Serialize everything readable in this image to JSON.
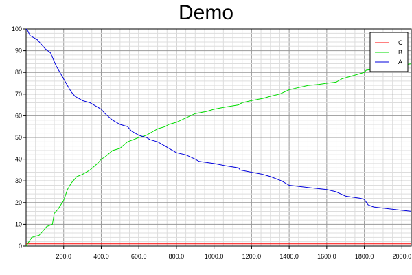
{
  "chart_data": {
    "type": "line",
    "title": "Demo",
    "xlabel": "",
    "ylabel": "",
    "xlim": [
      0,
      2050
    ],
    "ylim": [
      0,
      100
    ],
    "x_ticks": [
      200,
      400,
      600,
      800,
      1000,
      1200,
      1400,
      1600,
      1800,
      2000
    ],
    "x_tick_labels": [
      "200.0",
      "400.0",
      "600.0",
      "800.0",
      "1000.0",
      "1200.0",
      "1400.0",
      "1600.0",
      "1800.0",
      "2000.0"
    ],
    "y_ticks": [
      0,
      10,
      20,
      30,
      40,
      50,
      60,
      70,
      80,
      90,
      100
    ],
    "y_tick_labels": [
      "0",
      "10",
      "20",
      "30",
      "40",
      "50",
      "60",
      "70",
      "80",
      "90",
      "100"
    ],
    "grid": true,
    "legend_position": "top-right",
    "series": [
      {
        "name": "C",
        "color": "#ff0000",
        "x": [
          0,
          2050
        ],
        "y": [
          1,
          1
        ]
      },
      {
        "name": "B",
        "color": "#00dd00",
        "x": [
          0,
          15,
          30,
          70,
          90,
          110,
          140,
          150,
          170,
          200,
          220,
          240,
          270,
          300,
          340,
          380,
          400,
          420,
          460,
          500,
          540,
          570,
          600,
          640,
          680,
          700,
          740,
          760,
          800,
          850,
          900,
          960,
          1000,
          1060,
          1130,
          1150,
          1200,
          1260,
          1300,
          1350,
          1400,
          1450,
          1500,
          1560,
          1600,
          1650,
          1680,
          1720,
          1760,
          1800,
          1810,
          2050
        ],
        "y": [
          0,
          2,
          4,
          5,
          7,
          9,
          10,
          15,
          17,
          21,
          26,
          29,
          32,
          33,
          35,
          38,
          40,
          41,
          44,
          45,
          48,
          49,
          50,
          51,
          53,
          54,
          55,
          56,
          57,
          59,
          61,
          62,
          63,
          64,
          65,
          66,
          67,
          68,
          69,
          70,
          72,
          73,
          74,
          74.5,
          75,
          75.5,
          77,
          78,
          79,
          80,
          81,
          84
        ]
      },
      {
        "name": "A",
        "color": "#0000dd",
        "x": [
          0,
          10,
          20,
          40,
          60,
          80,
          100,
          130,
          150,
          160,
          180,
          200,
          220,
          240,
          260,
          280,
          300,
          340,
          360,
          400,
          420,
          460,
          500,
          540,
          560,
          600,
          640,
          660,
          700,
          740,
          760,
          800,
          850,
          900,
          920,
          1000,
          1060,
          1130,
          1140,
          1200,
          1260,
          1300,
          1360,
          1400,
          1450,
          1500,
          1600,
          1650,
          1700,
          1780,
          1800,
          1820,
          1850,
          1900,
          2000,
          2050
        ],
        "y": [
          100,
          99,
          97,
          96,
          95,
          93,
          91,
          89,
          85,
          83,
          80,
          77,
          74,
          71,
          69,
          68,
          67,
          66,
          65,
          63,
          61,
          58,
          56,
          55,
          53,
          51,
          50,
          49,
          48,
          46,
          45,
          43,
          42,
          40,
          39,
          38,
          37,
          36,
          35,
          34,
          33,
          32,
          30,
          28,
          27.5,
          27,
          26,
          25,
          23,
          22,
          21.5,
          19,
          18,
          17.5,
          16.5,
          16
        ]
      }
    ]
  }
}
